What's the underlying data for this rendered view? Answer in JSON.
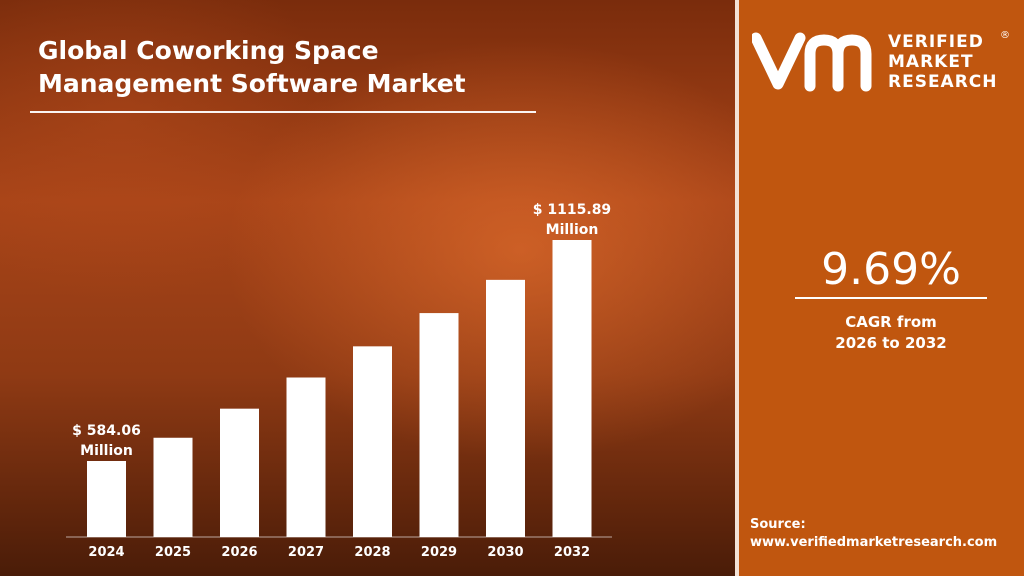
{
  "title_line1": "Global Coworking Space",
  "title_line2": "Management Software Market",
  "brand": {
    "line1": "VERIFIED",
    "line2": "MARKET",
    "line3": "RESEARCH",
    "registered": "®",
    "logo_mark": "vmr"
  },
  "cagr": {
    "value": "9.69%",
    "label_line1": "CAGR from",
    "label_line2": "2026 to 2032"
  },
  "source": {
    "label": "Source:",
    "url": "www.verifiedmarketresearch.com"
  },
  "colors": {
    "accent": "#c0560f",
    "bar": "#ffffff",
    "text": "#ffffff"
  },
  "chart_data": {
    "type": "bar",
    "categories": [
      "2024",
      "2025",
      "2026",
      "2027",
      "2028",
      "2029",
      "2030",
      "2032"
    ],
    "values": [
      584.06,
      640,
      710,
      785,
      860,
      940,
      1020,
      1115.89
    ],
    "annotations": [
      {
        "category": "2024",
        "line1": "$ 584.06",
        "line2": "Million"
      },
      {
        "category": "2032",
        "line1": "$ 1115.89",
        "line2": "Million"
      }
    ],
    "ylim": [
      300,
      1200
    ],
    "grid": false,
    "legend": "none"
  }
}
